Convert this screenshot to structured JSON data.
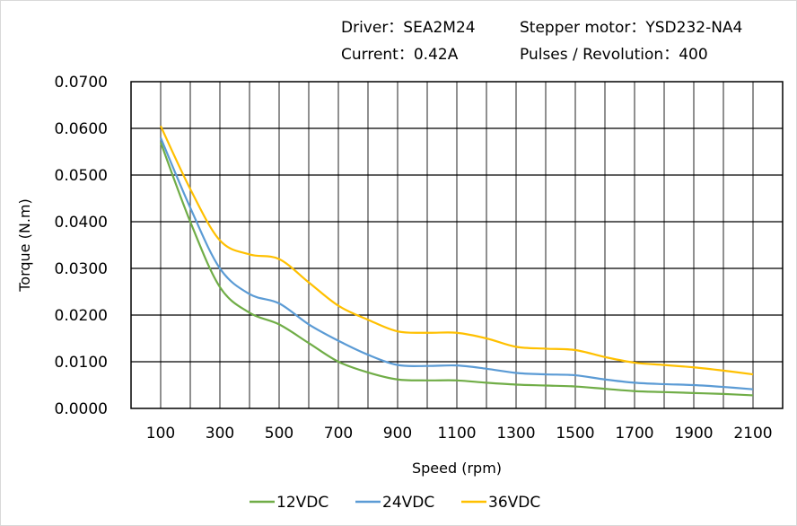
{
  "header": {
    "driver": "Driver：SEA2M24",
    "motor": "Stepper motor：YSD232-NA4",
    "current": "Current：0.42A",
    "pulses": "Pulses / Revolution：400"
  },
  "chart_data": {
    "type": "line",
    "xlabel": "Speed  (rpm)",
    "ylabel": "Torque (N.m)",
    "xlim": [
      0,
      2200
    ],
    "ylim": [
      0,
      0.07
    ],
    "grid": true,
    "legend": "bottom",
    "x_tick_labels": [
      "100",
      "300",
      "500",
      "700",
      "900",
      "1100",
      "1300",
      "1500",
      "1700",
      "1900",
      "2100"
    ],
    "y_tick_labels": [
      "0.0000",
      "0.0100",
      "0.0200",
      "0.0300",
      "0.0400",
      "0.0500",
      "0.0600",
      "0.0700"
    ],
    "x": [
      100,
      200,
      300,
      400,
      500,
      600,
      700,
      800,
      900,
      1000,
      1100,
      1200,
      1300,
      1400,
      1500,
      1600,
      1700,
      1800,
      1900,
      2000,
      2100
    ],
    "series": [
      {
        "name": "12VDC",
        "color": "#70ad47",
        "values": [
          0.057,
          0.04,
          0.026,
          0.0205,
          0.018,
          0.014,
          0.01,
          0.0077,
          0.0062,
          0.006,
          0.006,
          0.0055,
          0.0051,
          0.0049,
          0.0047,
          0.0042,
          0.0037,
          0.0035,
          0.0033,
          0.0031,
          0.0028
        ]
      },
      {
        "name": "24VDC",
        "color": "#5b9bd5",
        "values": [
          0.058,
          0.043,
          0.03,
          0.0245,
          0.0225,
          0.018,
          0.0145,
          0.0115,
          0.0093,
          0.0091,
          0.0092,
          0.0085,
          0.0076,
          0.0073,
          0.0071,
          0.0062,
          0.0055,
          0.0052,
          0.005,
          0.0046,
          0.0041
        ]
      },
      {
        "name": "36VDC",
        "color": "#ffc000",
        "values": [
          0.0605,
          0.047,
          0.036,
          0.033,
          0.032,
          0.027,
          0.022,
          0.019,
          0.0165,
          0.0162,
          0.0162,
          0.015,
          0.0132,
          0.0128,
          0.0125,
          0.011,
          0.0098,
          0.0093,
          0.0088,
          0.0081,
          0.0073
        ]
      }
    ]
  }
}
